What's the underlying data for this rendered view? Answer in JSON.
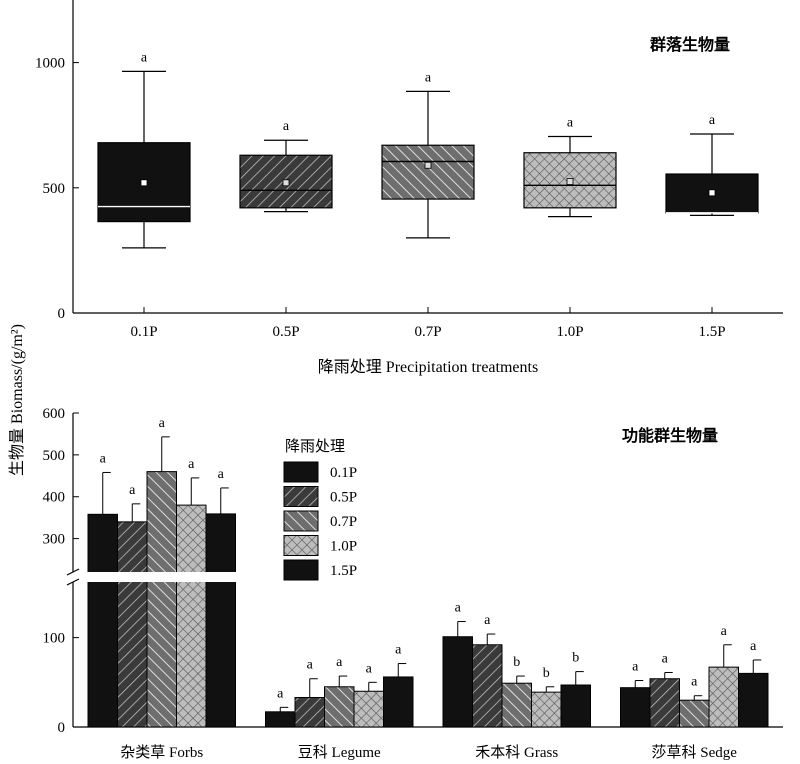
{
  "chart_data": [
    {
      "type": "box",
      "title": "群落生物量",
      "xlabel": "降雨处理 Precipitation treatments",
      "ylabel": "生物量 Biomass/(g/m²)",
      "ylim": [
        0,
        1250
      ],
      "yticks": [
        0,
        500,
        1000
      ],
      "categories": [
        "0.1P",
        "0.5P",
        "0.7P",
        "1.0P",
        "1.5P"
      ],
      "patterns": [
        "solid",
        "diag-right",
        "diag-left",
        "cross",
        "solid"
      ],
      "series": [
        {
          "category": "0.1P",
          "whisker_low": 260,
          "q1": 365,
          "median": 425,
          "q3": 680,
          "whisker_high": 965,
          "mean": 520,
          "sig": "a"
        },
        {
          "category": "0.5P",
          "whisker_low": 405,
          "q1": 420,
          "median": 490,
          "q3": 630,
          "whisker_high": 690,
          "mean": 520,
          "sig": "a"
        },
        {
          "category": "0.7P",
          "whisker_low": 300,
          "q1": 455,
          "median": 605,
          "q3": 670,
          "whisker_high": 885,
          "mean": 590,
          "sig": "a"
        },
        {
          "category": "1.0P",
          "whisker_low": 385,
          "q1": 420,
          "median": 510,
          "q3": 640,
          "whisker_high": 705,
          "mean": 525,
          "sig": "a"
        },
        {
          "category": "1.5P",
          "whisker_low": 390,
          "q1": 400,
          "median": 400,
          "q3": 555,
          "whisker_high": 715,
          "mean": 480,
          "sig": "a"
        }
      ]
    },
    {
      "type": "bar",
      "title": "功能群生物量",
      "legend_title": "降雨处理",
      "legend_position": "top-center",
      "axis_break": true,
      "ylim_lower": [
        0,
        160
      ],
      "yticks_lower": [
        0,
        100
      ],
      "ylim_upper": [
        225,
        600
      ],
      "yticks_upper": [
        300,
        400,
        500,
        600
      ],
      "categories": [
        "杂类草 Forbs",
        "豆科 Legume",
        "禾本科 Grass",
        "莎草科 Sedge"
      ],
      "series": [
        {
          "name": "0.1P",
          "pattern": "solid",
          "values": [
            358,
            17,
            101,
            44
          ],
          "errors": [
            100,
            5,
            17,
            8
          ],
          "sig": [
            "a",
            "a",
            "a",
            "a"
          ]
        },
        {
          "name": "0.5P",
          "pattern": "diag-right",
          "values": [
            340,
            33,
            92,
            54
          ],
          "errors": [
            43,
            21,
            12,
            7
          ],
          "sig": [
            "a",
            "a",
            "a",
            "a"
          ]
        },
        {
          "name": "0.7P",
          "pattern": "diag-left",
          "values": [
            460,
            45,
            49,
            30
          ],
          "errors": [
            83,
            12,
            8,
            5
          ],
          "sig": [
            "a",
            "a",
            "b",
            "a"
          ]
        },
        {
          "name": "1.0P",
          "pattern": "cross",
          "values": [
            380,
            40,
            39,
            67
          ],
          "errors": [
            65,
            10,
            6,
            25
          ],
          "sig": [
            "a",
            "a",
            "b",
            "a"
          ]
        },
        {
          "name": "1.5P",
          "pattern": "solid",
          "values": [
            359,
            56,
            47,
            60
          ],
          "errors": [
            62,
            15,
            15,
            15
          ],
          "sig": [
            "a",
            "a",
            "b",
            "a"
          ]
        }
      ]
    }
  ]
}
